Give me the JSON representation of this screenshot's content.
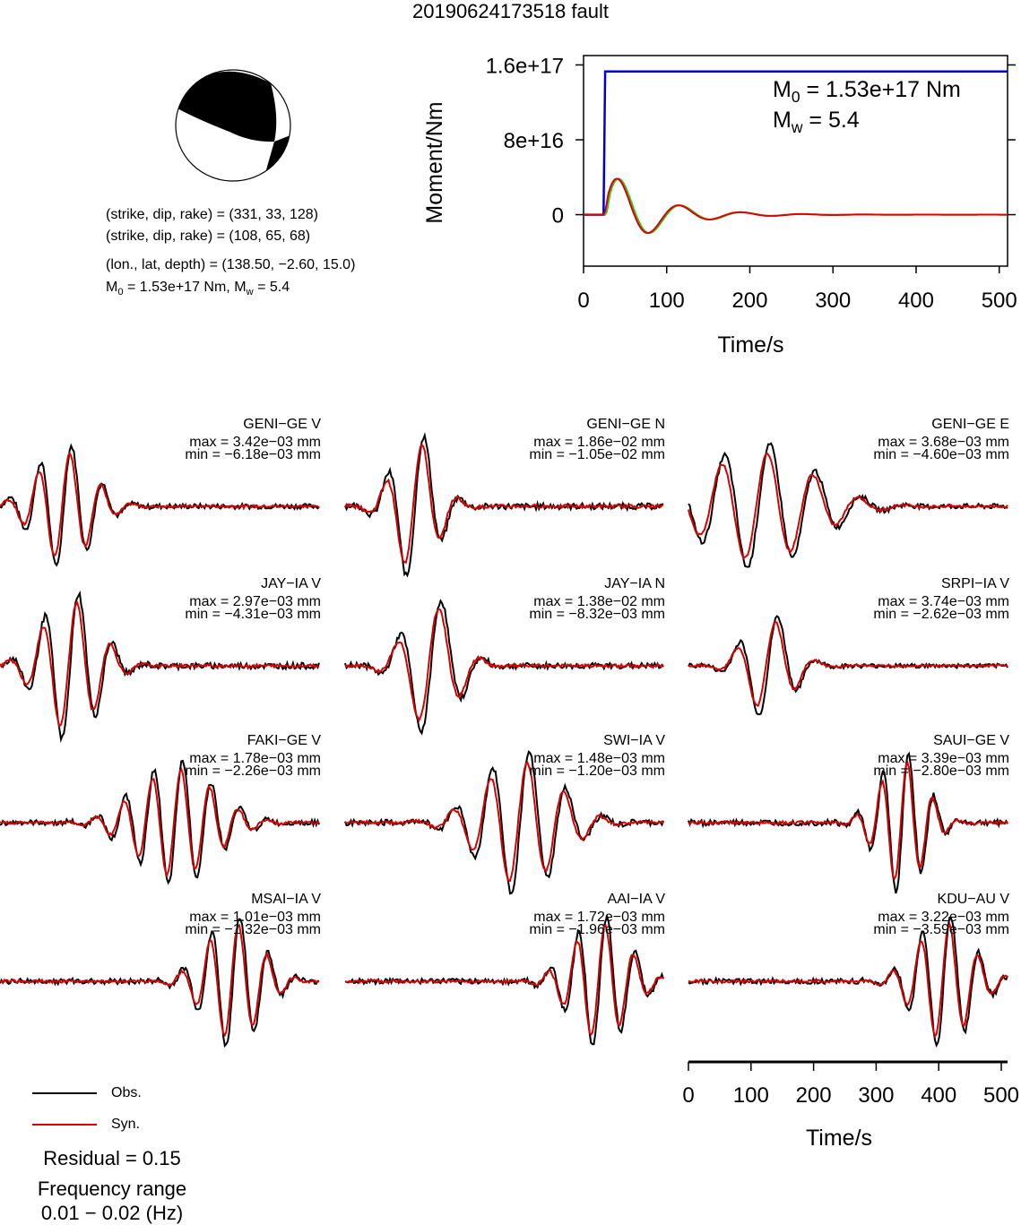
{
  "title": "20190624173518 fault",
  "focal": {
    "np1": "(strike, dip, rake) = (331, 33, 128)",
    "np2": "(strike, dip, rake) = (108, 65, 68)",
    "location": "(lon., lat, depth) = (138.50, −2.60, 15.0)",
    "m0_label": "M",
    "m0_sub": "0",
    "m0_rest": " = 1.53e+17 Nm, M",
    "mw_sub": "w",
    "mw_rest": " = 5.4"
  },
  "moment_panel": {
    "m0_main": "M",
    "m0_sub": "0",
    "m0_value": " = 1.53e+17 Nm",
    "mw_main": "M",
    "mw_sub": "w",
    "mw_value": " = 5.4"
  },
  "colors": {
    "obs": "#000000",
    "syn": "#dd0000",
    "moment": "#0000cc",
    "stf_green": "#22cc22"
  },
  "stations": [
    {
      "name": "GENI−GE V",
      "max": "max = 3.42e−03 mm",
      "min": "min = −6.18e−03 mm"
    },
    {
      "name": "GENI−GE N",
      "max": "max = 1.86e−02 mm",
      "min": "min = −1.05e−02 mm"
    },
    {
      "name": "GENI−GE E",
      "max": "max = 3.68e−03 mm",
      "min": "min = −4.60e−03 mm"
    },
    {
      "name": "JAY−IA V",
      "max": "max = 2.97e−03 mm",
      "min": "min = −4.31e−03 mm"
    },
    {
      "name": "JAY−IA N",
      "max": "max = 1.38e−02 mm",
      "min": "min = −8.32e−03 mm"
    },
    {
      "name": "SRPI−IA V",
      "max": "max = 3.74e−03 mm",
      "min": "min = −2.62e−03 mm"
    },
    {
      "name": "FAKI−GE V",
      "max": "max = 1.78e−03 mm",
      "min": "min = −2.26e−03 mm"
    },
    {
      "name": "SWI−IA V",
      "max": "max = 1.48e−03 mm",
      "min": "min = −1.20e−03 mm"
    },
    {
      "name": "SAUI−GE V",
      "max": "max = 3.39e−03 mm",
      "min": "min = −2.80e−03 mm"
    },
    {
      "name": "MSAI−IA V",
      "max": "max = 1.01e−03 mm",
      "min": "min = −1.32e−03 mm"
    },
    {
      "name": "AAI−IA V",
      "max": "max = 1.72e−03 mm",
      "min": "min = −1.96e−03 mm"
    },
    {
      "name": "KDU−AU V",
      "max": "max = 3.22e−03 mm",
      "min": "min = −3.59e−03 mm"
    }
  ],
  "legend": {
    "obs": "Obs.",
    "syn": "Syn."
  },
  "residual": "Residual = 0.15",
  "freq_label": "Frequency range",
  "freq_value": "0.01 − 0.02 (Hz)",
  "chart_data": [
    {
      "type": "line",
      "xlabel": "Time/s",
      "ylabel": "Moment/Nm",
      "xlim": [
        0,
        510
      ],
      "ylim": [
        -55000000000000000,
        170000000000000000
      ],
      "x_ticks": [
        0,
        100,
        200,
        300,
        400,
        500
      ],
      "y_ticks": [
        0,
        80000000000000000,
        160000000000000000
      ],
      "y_tick_labels": [
        "0",
        "8e+16",
        "1.6e+17"
      ],
      "series": [
        {
          "color": "#0000cc",
          "x": [
            0,
            24,
            26,
            510
          ],
          "y": [
            0,
            0,
            153000000000000000,
            153000000000000000
          ]
        }
      ]
    },
    {
      "type": "line",
      "xlabel": "Time/s",
      "xlim": [
        0,
        510
      ],
      "x_ticks": [
        0,
        100,
        200,
        300,
        400,
        500
      ]
    }
  ]
}
